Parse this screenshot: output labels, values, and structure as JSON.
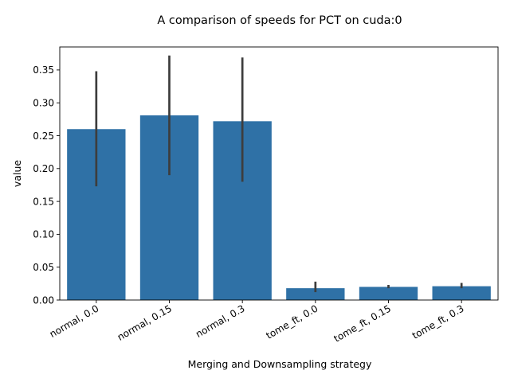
{
  "chart_data": {
    "type": "bar",
    "title": "A comparison of speeds for PCT on cuda:0",
    "xlabel": "Merging and Downsampling strategy",
    "ylabel": "value",
    "categories": [
      "normal, 0.0",
      "normal, 0.15",
      "normal, 0.3",
      "tome_ft, 0.0",
      "tome_ft, 0.15",
      "tome_ft, 0.3"
    ],
    "values": [
      0.26,
      0.281,
      0.272,
      0.018,
      0.02,
      0.021
    ],
    "error_low": [
      0.173,
      0.19,
      0.18,
      0.012,
      0.018,
      0.018
    ],
    "error_high": [
      0.348,
      0.372,
      0.369,
      0.028,
      0.023,
      0.026
    ],
    "ylim": [
      0,
      0.385
    ],
    "yticks": [
      "0.00",
      "0.05",
      "0.10",
      "0.15",
      "0.20",
      "0.25",
      "0.30",
      "0.35"
    ],
    "ytick_values": [
      0,
      0.05,
      0.1,
      0.15,
      0.2,
      0.25,
      0.3,
      0.35
    ],
    "bar_color": "#2f71a6",
    "error_color": "#3d3d3d",
    "grid": false,
    "legend": "none"
  }
}
